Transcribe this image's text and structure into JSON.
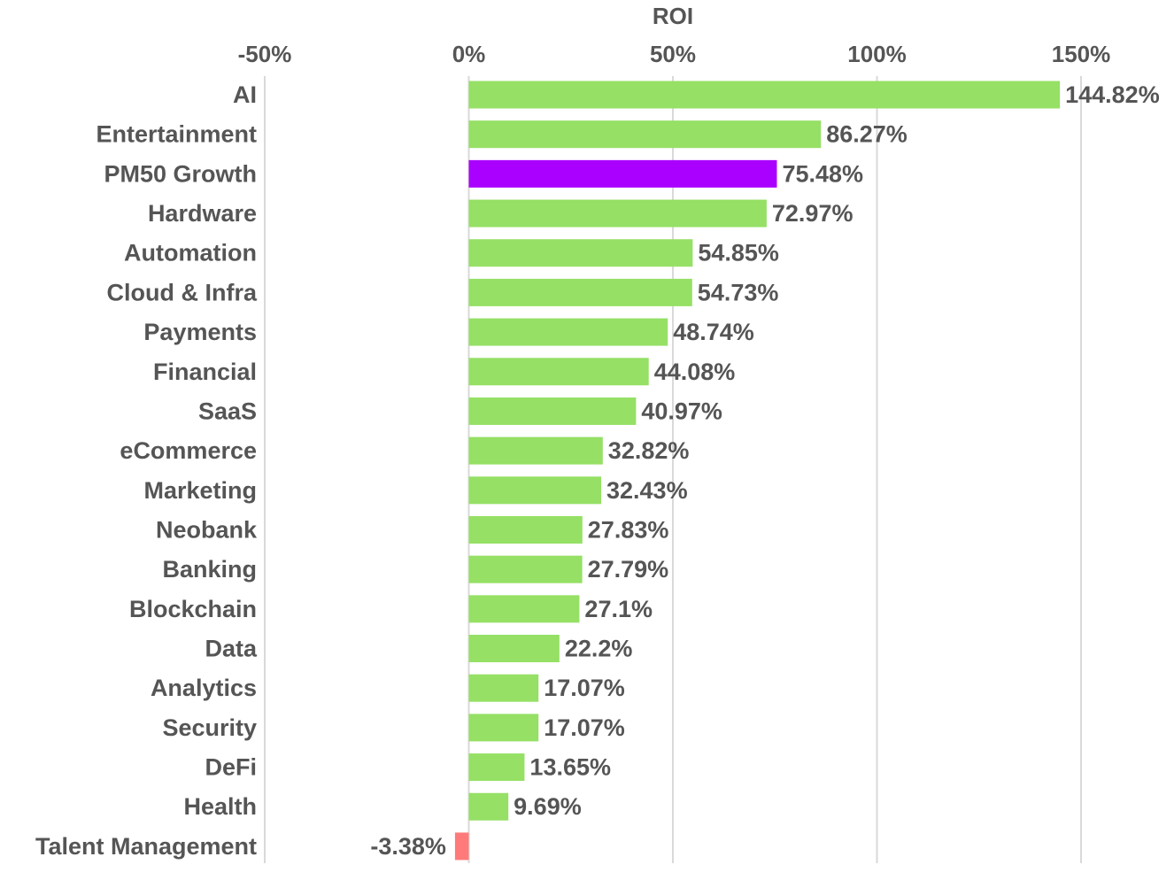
{
  "chart_data": {
    "type": "bar",
    "orientation": "horizontal",
    "title": "",
    "xlabel": "ROI",
    "ylabel": "",
    "xlim": [
      -0.5,
      1.5
    ],
    "xticks": [
      -0.5,
      0,
      0.5,
      1,
      1.5
    ],
    "xtick_labels": [
      "-50%",
      "0%",
      "50%",
      "100%",
      "150%"
    ],
    "axis_position": "top",
    "grid": true,
    "categories": [
      "AI",
      "Entertainment",
      "PM50 Growth",
      "Hardware",
      "Automation",
      "Cloud & Infra",
      "Payments",
      "Financial",
      "SaaS",
      "eCommerce",
      "Marketing",
      "Neobank",
      "Banking",
      "Blockchain",
      "Data",
      "Analytics",
      "Security",
      "DeFi",
      "Health",
      "Talent Management"
    ],
    "values": [
      1.4482,
      0.8627,
      0.7548,
      0.7297,
      0.5485,
      0.5473,
      0.4874,
      0.4408,
      0.4097,
      0.3282,
      0.3243,
      0.2783,
      0.2779,
      0.271,
      0.222,
      0.1707,
      0.1707,
      0.1365,
      0.0969,
      -0.0338
    ],
    "value_labels": [
      "144.82%",
      "86.27%",
      "75.48%",
      "72.97%",
      "54.85%",
      "54.73%",
      "48.74%",
      "44.08%",
      "40.97%",
      "32.82%",
      "32.43%",
      "27.83%",
      "27.79%",
      "27.1%",
      "22.2%",
      "17.07%",
      "17.07%",
      "13.65%",
      "9.69%",
      "-3.38%"
    ],
    "bar_colors": [
      "#95e065",
      "#95e065",
      "#aa00ff",
      "#95e065",
      "#95e065",
      "#95e065",
      "#95e065",
      "#95e065",
      "#95e065",
      "#95e065",
      "#95e065",
      "#95e065",
      "#95e065",
      "#95e065",
      "#95e065",
      "#95e065",
      "#95e065",
      "#95e065",
      "#95e065",
      "#ff7a7a"
    ]
  }
}
